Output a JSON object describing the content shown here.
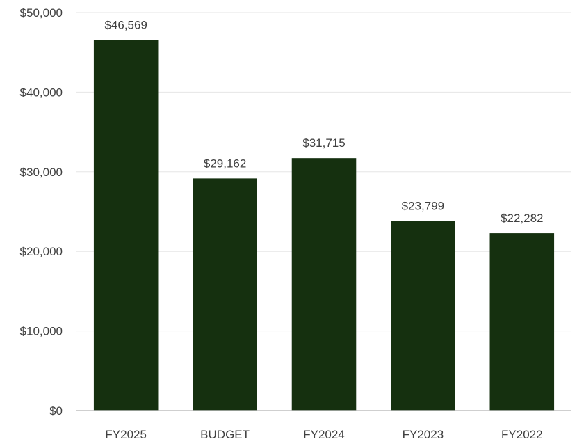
{
  "chart_data": {
    "type": "bar",
    "categories": [
      "FY2025",
      "BUDGET",
      "FY2024",
      "FY2023",
      "FY2022"
    ],
    "values": [
      46569,
      29162,
      31715,
      23799,
      22282
    ],
    "data_labels": [
      "$46,569",
      "$29,162",
      "$31,715",
      "$23,799",
      "$22,282"
    ],
    "y_ticks": [
      0,
      10000,
      20000,
      30000,
      40000,
      50000
    ],
    "y_tick_labels": [
      "$0",
      "$10,000",
      "$20,000",
      "$30,000",
      "$40,000",
      "$50,000"
    ],
    "ylim": [
      0,
      50000
    ],
    "grid": true,
    "legend": "none",
    "bar_color": "#15300f",
    "title": "",
    "xlabel": "",
    "ylabel": ""
  }
}
